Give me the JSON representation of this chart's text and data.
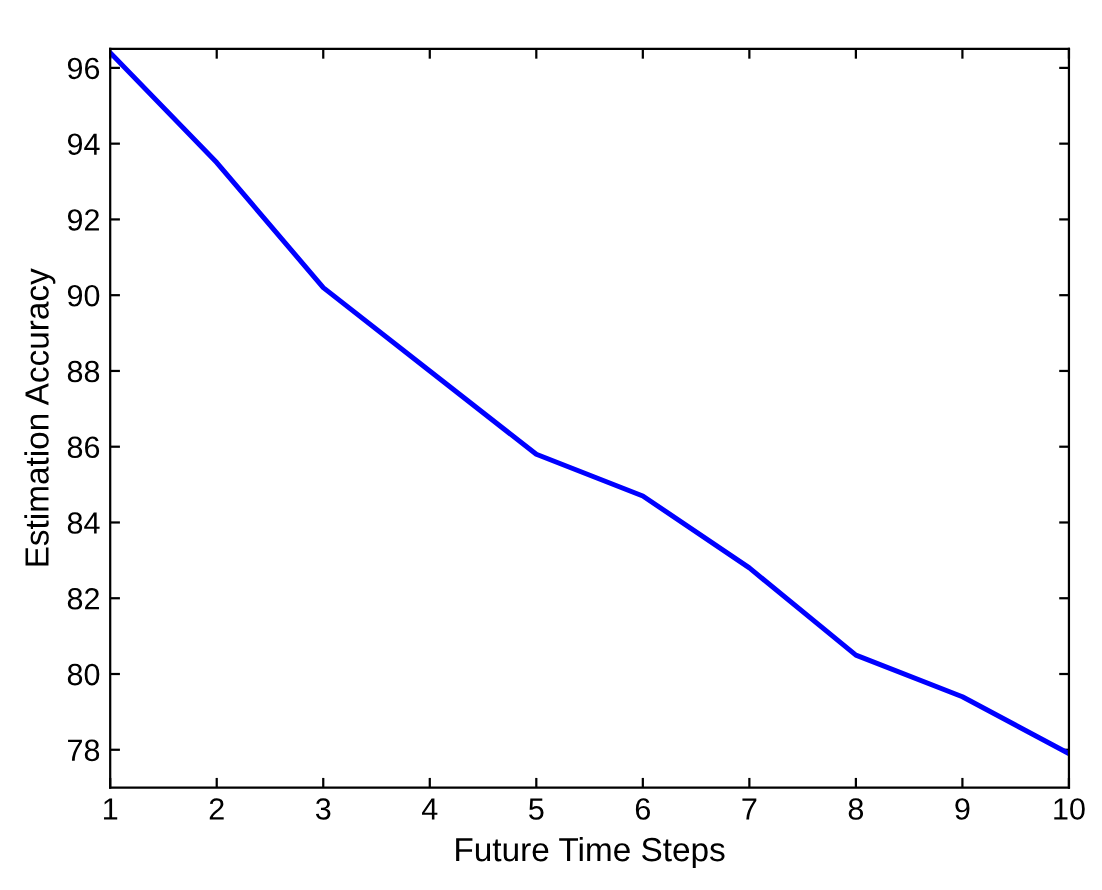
{
  "chart_data": {
    "type": "line",
    "xlabel": "Future Time Steps",
    "ylabel": "Estimation Accuracy",
    "x": [
      1,
      2,
      3,
      4,
      5,
      6,
      7,
      8,
      9,
      10
    ],
    "series": [
      {
        "color": "#0000ff",
        "values": [
          96.4,
          93.5,
          90.2,
          88.0,
          85.8,
          84.7,
          82.8,
          80.5,
          79.4,
          77.9
        ]
      }
    ],
    "xlim": [
      1,
      10
    ],
    "xticks": [
      1,
      2,
      3,
      4,
      5,
      6,
      7,
      8,
      9,
      10
    ],
    "ylim": [
      77,
      96.5
    ],
    "yticks": [
      78,
      80,
      82,
      84,
      86,
      88,
      90,
      92,
      94,
      96
    ],
    "grid": false,
    "legend": false
  }
}
